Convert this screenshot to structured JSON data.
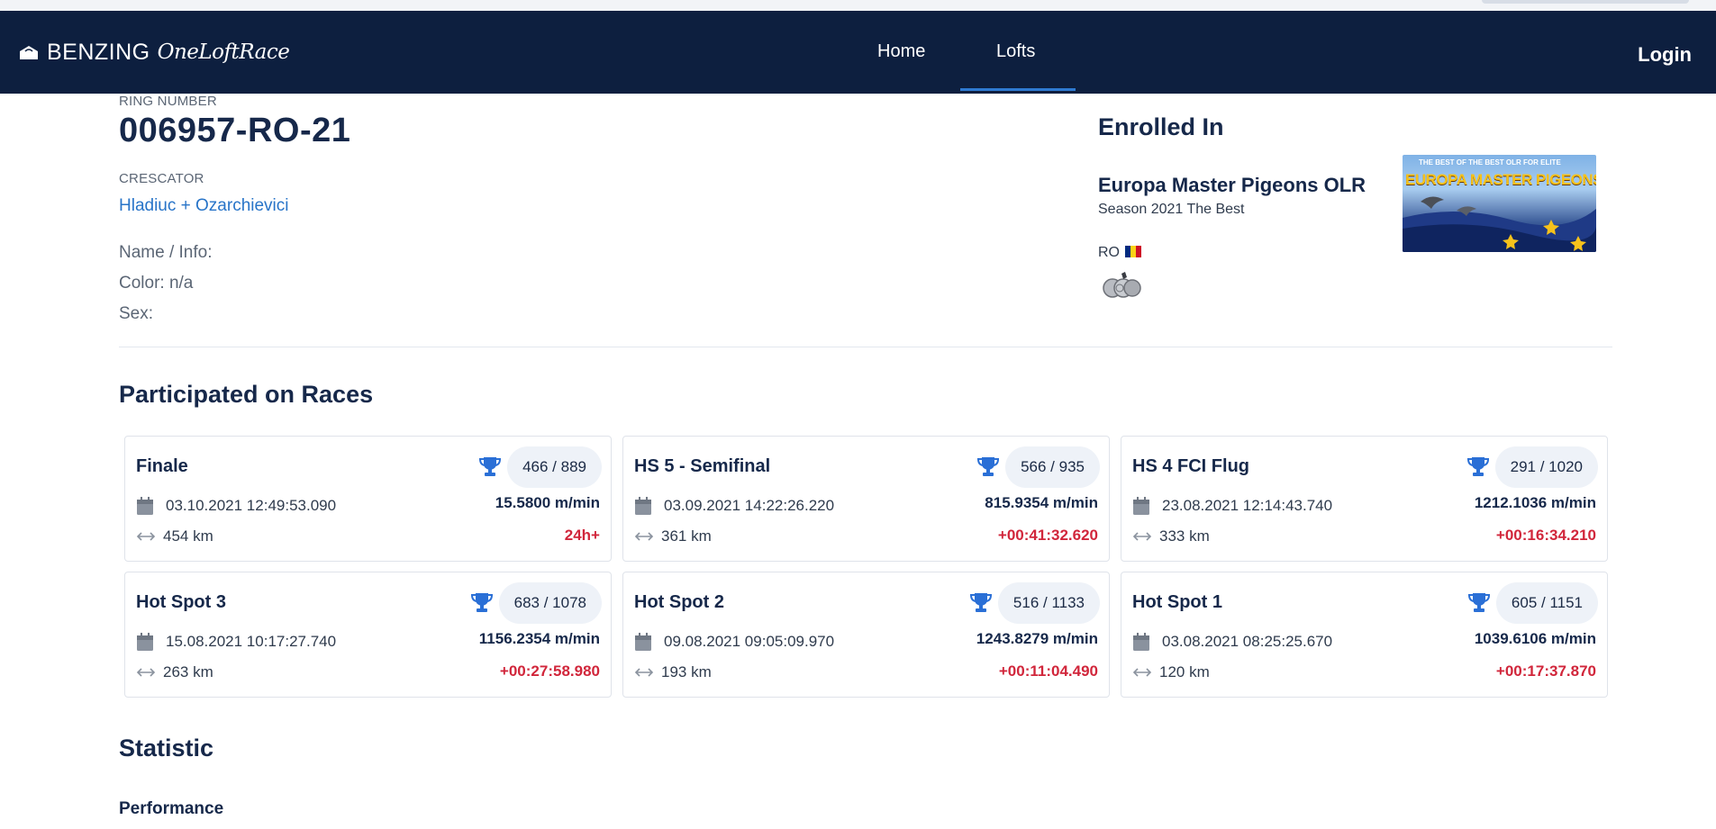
{
  "header": {
    "brand": "BENZING",
    "brand_script": "OneLoftRace",
    "nav": [
      {
        "label": "Home"
      },
      {
        "label": "Lofts"
      }
    ],
    "login": "Login",
    "colors": {
      "navbar": "#0d1f3f",
      "active_underline": "#2e7ad1"
    }
  },
  "pigeon": {
    "ring_label": "RING NUMBER",
    "ring_number": "006957-RO-21",
    "breeder_label": "CRESCATOR",
    "breeder_name": "Hladiuc + Ozarchievici",
    "name_info": "Name / Info:",
    "color": "Color: n/a",
    "sex": "Sex:"
  },
  "enrolled": {
    "title": "Enrolled In",
    "competition": "Europa Master Pigeons OLR",
    "season": "Season 2021 The Best",
    "country": "RO",
    "banner_top": "THE BEST OF THE BEST OLR FOR ELITE",
    "banner_main": "EUROPA MASTER PIGEONS",
    "coins_icon": "coins-icon",
    "flag_colors": [
      "#002b7f",
      "#fcd116",
      "#ce1126"
    ]
  },
  "races_section": {
    "title": "Participated on Races",
    "races": [
      {
        "name": "Finale",
        "rank": "466 / 889",
        "datetime": "03.10.2021 12:49:53.090",
        "speed": "15.5800 m/min",
        "distance": "454 km",
        "delay": "24h+"
      },
      {
        "name": "HS 5 - Semifinal",
        "rank": "566 / 935",
        "datetime": "03.09.2021 14:22:26.220",
        "speed": "815.9354 m/min",
        "distance": "361 km",
        "delay": "+00:41:32.620"
      },
      {
        "name": "HS 4 FCI Flug",
        "rank": "291 / 1020",
        "datetime": "23.08.2021 12:14:43.740",
        "speed": "1212.1036 m/min",
        "distance": "333 km",
        "delay": "+00:16:34.210"
      },
      {
        "name": "Hot Spot 3",
        "rank": "683 / 1078",
        "datetime": "15.08.2021 10:17:27.740",
        "speed": "1156.2354 m/min",
        "distance": "263 km",
        "delay": "+00:27:58.980"
      },
      {
        "name": "Hot Spot 2",
        "rank": "516 / 1133",
        "datetime": "09.08.2021 09:05:09.970",
        "speed": "1243.8279 m/min",
        "distance": "193 km",
        "delay": "+00:11:04.490"
      },
      {
        "name": "Hot Spot 1",
        "rank": "605 / 1151",
        "datetime": "03.08.2021 08:25:25.670",
        "speed": "1039.6106 m/min",
        "distance": "120 km",
        "delay": "+00:17:37.870"
      }
    ],
    "icons": {
      "rank": "trophy-icon",
      "date": "calendar-icon",
      "distance": "arrows-horizontal-icon"
    },
    "colors": {
      "trophy": "#2a6fd6",
      "delay": "#d1263b"
    }
  },
  "statistic": {
    "title": "Statistic",
    "performance": "Performance"
  }
}
